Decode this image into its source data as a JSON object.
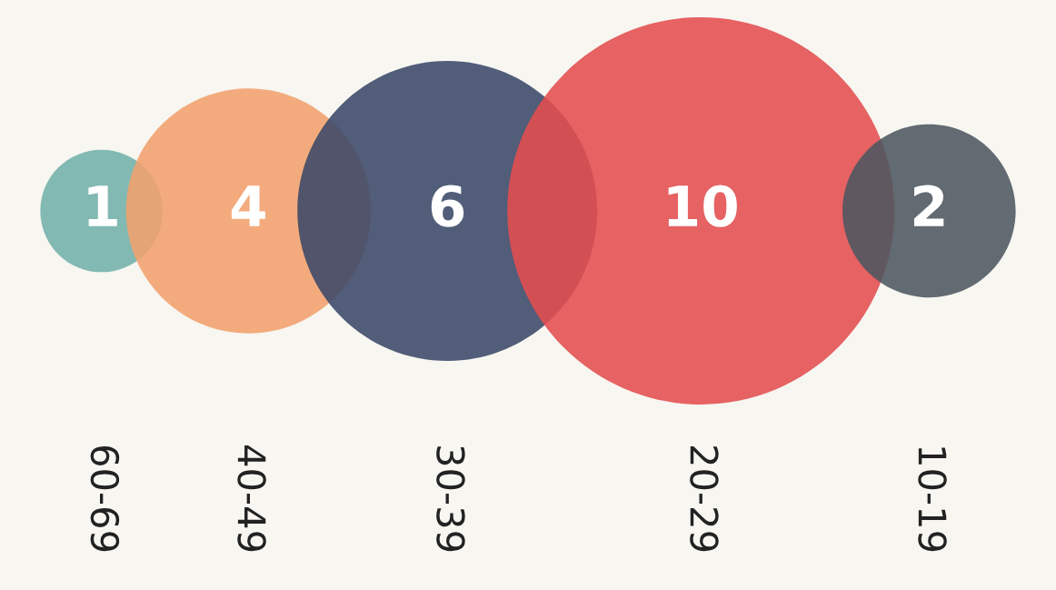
{
  "chart_data": {
    "type": "other",
    "categories": [
      "60-69",
      "40-49",
      "30-39",
      "20-29",
      "10-19"
    ],
    "values": [
      1,
      4,
      6,
      10,
      2
    ],
    "colors": [
      "#72b1a8",
      "#f2a06c",
      "#3a4868",
      "#e44d4f",
      "#4d5660"
    ],
    "data_labels": true
  }
}
